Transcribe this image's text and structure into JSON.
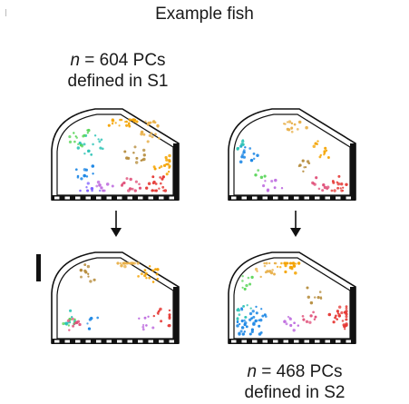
{
  "figure": {
    "title": "Example fish",
    "top_label": {
      "n_symbol": "n",
      "line1_rest": " = 604 PCs",
      "line2": "defined in S1"
    },
    "bottom_label": {
      "n_symbol": "n",
      "line1_rest": " = 468 PCs",
      "line2": "defined in S2"
    }
  },
  "colors": {
    "outline": "#111111",
    "cluster_palette": [
      "#1e88e5",
      "#2ec4b6",
      "#5cd65c",
      "#f4a300",
      "#e8b04a",
      "#b58b3a",
      "#e53935",
      "#e0507a",
      "#c070e0",
      "#7b5cff"
    ]
  },
  "panels": [
    {
      "id": "s1-in-s1",
      "clusters": [
        [
          "#2ec4b6",
          100,
          160,
          18
        ],
        [
          "#5cd65c",
          88,
          150,
          14
        ],
        [
          "#1e88e5",
          95,
          190,
          10
        ],
        [
          "#f4a300",
          135,
          132,
          22
        ],
        [
          "#e8b04a",
          165,
          145,
          18
        ],
        [
          "#b58b3a",
          150,
          170,
          12
        ],
        [
          "#f4a300",
          180,
          180,
          18
        ],
        [
          "#e53935",
          175,
          205,
          20
        ],
        [
          "#e0507a",
          145,
          205,
          12
        ],
        [
          "#c070e0",
          115,
          208,
          10
        ],
        [
          "#7b5cff",
          100,
          210,
          8
        ]
      ]
    },
    {
      "id": "s2-in-s1",
      "clusters": [
        [
          "#1e88e5",
          272,
          170,
          14
        ],
        [
          "#2ec4b6",
          262,
          160,
          8
        ],
        [
          "#e8b04a",
          325,
          140,
          14
        ],
        [
          "#f4a300",
          355,
          165,
          12
        ],
        [
          "#b58b3a",
          340,
          185,
          8
        ],
        [
          "#e53935",
          375,
          205,
          14
        ],
        [
          "#e0507a",
          350,
          205,
          10
        ],
        [
          "#c070e0",
          300,
          205,
          8
        ],
        [
          "#5cd65c",
          285,
          190,
          5
        ]
      ]
    },
    {
      "id": "s1-in-s2",
      "clusters": [
        [
          "#e8b04a",
          140,
          285,
          18
        ],
        [
          "#b58b3a",
          100,
          300,
          10
        ],
        [
          "#f4a300",
          165,
          300,
          14
        ],
        [
          "#e53935",
          182,
          350,
          14
        ],
        [
          "#2ec4b6",
          75,
          350,
          8
        ],
        [
          "#5cd65c",
          75,
          355,
          6
        ],
        [
          "#e0507a",
          85,
          358,
          8
        ],
        [
          "#c070e0",
          160,
          355,
          8
        ],
        [
          "#1e88e5",
          100,
          355,
          5
        ]
      ]
    },
    {
      "id": "s2-in-s2",
      "clusters": [
        [
          "#f4a300",
          320,
          290,
          24
        ],
        [
          "#e8b04a",
          295,
          295,
          16
        ],
        [
          "#5cd65c",
          275,
          310,
          8
        ],
        [
          "#1e88e5",
          275,
          355,
          40
        ],
        [
          "#2ec4b6",
          268,
          345,
          10
        ],
        [
          "#e53935",
          380,
          350,
          26
        ],
        [
          "#c070e0",
          320,
          355,
          10
        ],
        [
          "#e0507a",
          340,
          350,
          8
        ],
        [
          "#b58b3a",
          345,
          325,
          8
        ]
      ]
    }
  ]
}
